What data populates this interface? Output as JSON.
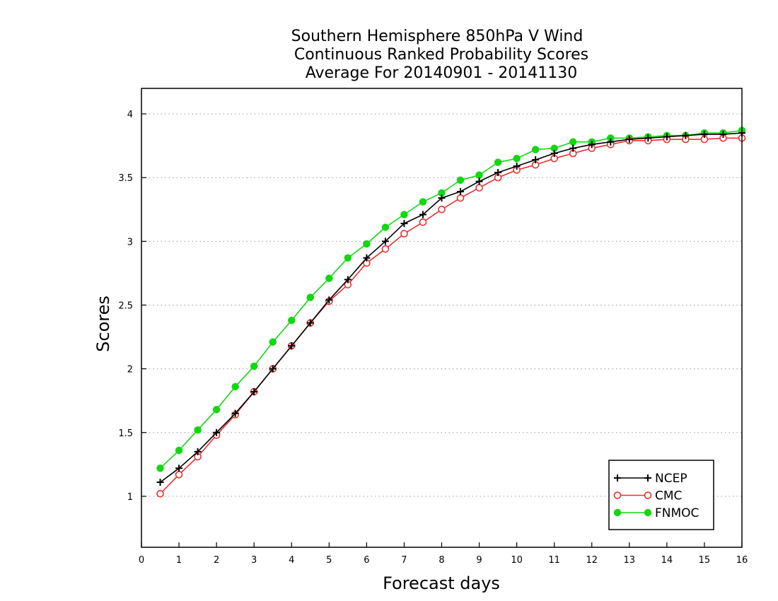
{
  "chart_data": {
    "type": "line",
    "title": [
      "Southern Hemisphere 850hPa V Wind",
      "Continuous Ranked Probability Scores",
      "Average For 20140901 - 20141130"
    ],
    "xlabel": "Forecast days",
    "ylabel": "Scores",
    "xlim": [
      0,
      16
    ],
    "ylim": [
      0.6,
      4.2
    ],
    "xticks": [
      0,
      1,
      2,
      3,
      4,
      5,
      6,
      7,
      8,
      9,
      10,
      11,
      12,
      13,
      14,
      15,
      16
    ],
    "xtick_labels": [
      "0",
      "1",
      "2",
      "3",
      "4",
      "5",
      "6",
      "7",
      "8",
      "9",
      "10",
      "11",
      "12",
      "13",
      "14",
      "15",
      "16"
    ],
    "yticks": [
      1,
      1.5,
      2,
      2.5,
      3,
      3.5,
      4
    ],
    "ytick_labels": [
      "1",
      "1.5",
      "2",
      "2.5",
      "3",
      "3.5",
      "4"
    ],
    "grid": "horizontal-dotted",
    "legend_position": "bottom-right",
    "x": [
      0.5,
      1,
      1.5,
      2,
      2.5,
      3,
      3.5,
      4,
      4.5,
      5,
      5.5,
      6,
      6.5,
      7,
      7.5,
      8,
      8.5,
      9,
      9.5,
      10,
      10.5,
      11,
      11.5,
      12,
      12.5,
      13,
      13.5,
      14,
      14.5,
      15,
      15.5,
      16
    ],
    "series": [
      {
        "name": "NCEP",
        "color": "#000000",
        "marker": "plus",
        "values": [
          1.11,
          1.22,
          1.35,
          1.5,
          1.65,
          1.82,
          2.0,
          2.18,
          2.36,
          2.54,
          2.7,
          2.87,
          3.0,
          3.14,
          3.21,
          3.34,
          3.39,
          3.47,
          3.54,
          3.59,
          3.64,
          3.69,
          3.73,
          3.76,
          3.78,
          3.8,
          3.81,
          3.82,
          3.83,
          3.84,
          3.84,
          3.85
        ]
      },
      {
        "name": "CMC",
        "color": "#e8302f",
        "marker": "open-circle",
        "values": [
          1.02,
          1.17,
          1.31,
          1.48,
          1.64,
          1.82,
          2.0,
          2.18,
          2.36,
          2.53,
          2.66,
          2.83,
          2.94,
          3.06,
          3.15,
          3.25,
          3.34,
          3.42,
          3.5,
          3.56,
          3.6,
          3.65,
          3.69,
          3.73,
          3.76,
          3.79,
          3.79,
          3.8,
          3.8,
          3.8,
          3.81,
          3.81
        ]
      },
      {
        "name": "FNMOC",
        "color": "#11d811",
        "marker": "filled-circle",
        "values": [
          1.22,
          1.36,
          1.52,
          1.68,
          1.86,
          2.02,
          2.21,
          2.38,
          2.56,
          2.71,
          2.87,
          2.98,
          3.11,
          3.21,
          3.31,
          3.38,
          3.48,
          3.52,
          3.62,
          3.65,
          3.72,
          3.73,
          3.78,
          3.78,
          3.81,
          3.81,
          3.82,
          3.83,
          3.83,
          3.85,
          3.85,
          3.87
        ]
      }
    ]
  }
}
